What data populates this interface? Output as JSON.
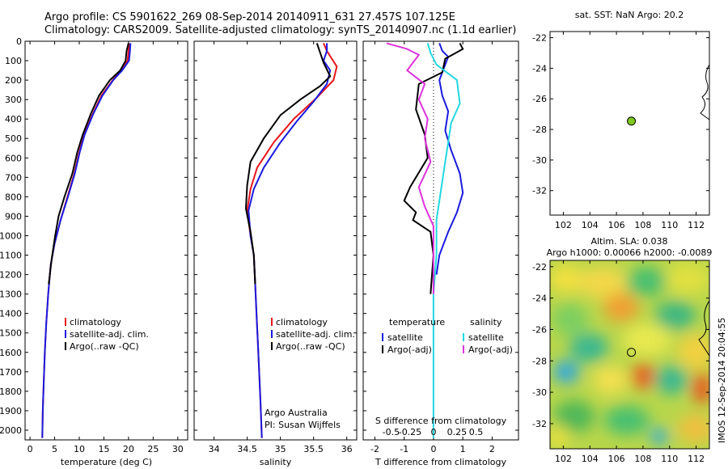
{
  "header": {
    "line1": "Argo profile: CS 5901622_269 08-Sep-2014 20140911_631 27.457S 107.125E",
    "line2": "Climatology: CARS2009. Satellite-adjusted climatology: synTS_20140907.nc (1.1d earlier)"
  },
  "credit": "IMOS 12-Sep-2014 20:04:55",
  "colors": {
    "climatology": "#e8141b",
    "satellite": "#1a1ae0",
    "argo": "#000000",
    "cyan": "#22d8e0",
    "magenta": "#dd33dd"
  },
  "chart_data": [
    {
      "type": "line",
      "id": "temperature",
      "xlabel": "temperature (deg C)",
      "ylabel": "",
      "xlim": [
        -1,
        32
      ],
      "ylim": [
        2050,
        0
      ],
      "xticks": [
        0,
        5,
        10,
        15,
        20,
        25,
        30
      ],
      "yticks": [
        0,
        100,
        200,
        300,
        400,
        500,
        600,
        700,
        800,
        900,
        1000,
        1100,
        1200,
        1300,
        1400,
        1500,
        1600,
        1700,
        1800,
        1900,
        2000
      ],
      "legend": [
        "climatology",
        "satellite-adj. clim.",
        "Argo(..raw -QC)"
      ],
      "series": [
        {
          "name": "climatology",
          "color": "#e8141b",
          "points": [
            [
              20.1,
              10
            ],
            [
              20.0,
              50
            ],
            [
              19.8,
              100
            ],
            [
              18.5,
              150
            ],
            [
              16.8,
              200
            ],
            [
              14.5,
              280
            ],
            [
              12.8,
              370
            ],
            [
              11.0,
              480
            ],
            [
              10.0,
              570
            ],
            [
              9.0,
              680
            ],
            [
              7.6,
              800
            ],
            [
              6.2,
              920
            ],
            [
              5.0,
              1040
            ],
            [
              4.2,
              1150
            ],
            [
              3.7,
              1300
            ],
            [
              3.3,
              1450
            ],
            [
              3.0,
              1600
            ],
            [
              2.8,
              1750
            ],
            [
              2.6,
              1900
            ],
            [
              2.5,
              2040
            ]
          ]
        },
        {
          "name": "satellite-adj. clim.",
          "color": "#1a1ae0",
          "points": [
            [
              20.4,
              10
            ],
            [
              20.3,
              50
            ],
            [
              20.1,
              100
            ],
            [
              18.7,
              150
            ],
            [
              16.9,
              200
            ],
            [
              14.7,
              280
            ],
            [
              12.9,
              370
            ],
            [
              11.1,
              480
            ],
            [
              10.1,
              570
            ],
            [
              9.1,
              680
            ],
            [
              7.7,
              800
            ],
            [
              6.2,
              920
            ],
            [
              5.0,
              1040
            ],
            [
              4.2,
              1150
            ],
            [
              3.7,
              1300
            ],
            [
              3.3,
              1450
            ],
            [
              3.0,
              1600
            ],
            [
              2.8,
              1750
            ],
            [
              2.6,
              1900
            ],
            [
              2.5,
              2040
            ]
          ]
        },
        {
          "name": "Argo(..raw -QC)",
          "color": "#000000",
          "points": [
            [
              20.0,
              10
            ],
            [
              19.6,
              50
            ],
            [
              19.4,
              100
            ],
            [
              18.3,
              150
            ],
            [
              16.2,
              200
            ],
            [
              14.0,
              280
            ],
            [
              12.4,
              370
            ],
            [
              10.7,
              480
            ],
            [
              9.6,
              570
            ],
            [
              8.6,
              680
            ],
            [
              7.0,
              800
            ],
            [
              5.8,
              900
            ],
            [
              5.1,
              1000
            ],
            [
              4.4,
              1120
            ],
            [
              3.8,
              1250
            ]
          ]
        }
      ]
    },
    {
      "type": "line",
      "id": "salinity",
      "xlabel": "salinity",
      "ylabel": "",
      "xlim": [
        33.7,
        36.15
      ],
      "ylim": [
        2050,
        0
      ],
      "xticks": [
        34,
        34.5,
        35,
        35.5,
        36
      ],
      "legend": [
        "climatology",
        "satellite-adj. clim.",
        "Argo(..raw -QC)"
      ],
      "annotation": [
        "Argo Australia",
        "PI: Susan Wijffels"
      ],
      "series": [
        {
          "name": "climatology",
          "color": "#e8141b",
          "points": [
            [
              35.65,
              10
            ],
            [
              35.7,
              50
            ],
            [
              35.85,
              130
            ],
            [
              35.8,
              200
            ],
            [
              35.55,
              290
            ],
            [
              35.2,
              400
            ],
            [
              34.9,
              520
            ],
            [
              34.65,
              650
            ],
            [
              34.55,
              760
            ],
            [
              34.5,
              870
            ],
            [
              34.55,
              1000
            ],
            [
              34.6,
              1100
            ],
            [
              34.62,
              1250
            ],
            [
              34.64,
              1400
            ],
            [
              34.66,
              1550
            ],
            [
              34.68,
              1700
            ],
            [
              34.7,
              1850
            ],
            [
              34.72,
              2040
            ]
          ]
        },
        {
          "name": "satellite-adj. clim.",
          "color": "#1a1ae0",
          "points": [
            [
              35.7,
              10
            ],
            [
              35.7,
              50
            ],
            [
              35.65,
              100
            ],
            [
              35.75,
              150
            ],
            [
              35.7,
              220
            ],
            [
              35.5,
              310
            ],
            [
              35.25,
              410
            ],
            [
              35.0,
              520
            ],
            [
              34.75,
              650
            ],
            [
              34.6,
              760
            ],
            [
              34.52,
              870
            ],
            [
              34.55,
              1000
            ],
            [
              34.6,
              1100
            ],
            [
              34.62,
              1250
            ],
            [
              34.64,
              1400
            ],
            [
              34.66,
              1550
            ],
            [
              34.68,
              1700
            ],
            [
              34.7,
              1850
            ],
            [
              34.72,
              2040
            ]
          ]
        },
        {
          "name": "Argo(..raw -QC)",
          "color": "#000000",
          "points": [
            [
              35.55,
              10
            ],
            [
              35.6,
              60
            ],
            [
              35.65,
              110
            ],
            [
              35.75,
              180
            ],
            [
              35.6,
              230
            ],
            [
              35.3,
              300
            ],
            [
              35.0,
              380
            ],
            [
              34.75,
              500
            ],
            [
              34.55,
              620
            ],
            [
              34.5,
              740
            ],
            [
              34.48,
              860
            ],
            [
              34.55,
              980
            ],
            [
              34.6,
              1100
            ],
            [
              34.62,
              1250
            ]
          ]
        }
      ]
    },
    {
      "type": "line",
      "id": "difference",
      "xlabel": "T difference from climatology",
      "ylabel": "",
      "xlim": [
        -2.4,
        2.9
      ],
      "ylim": [
        2050,
        0
      ],
      "xticks": [
        -2,
        -1,
        0,
        1,
        2
      ],
      "top_axis_label": "S difference from climatology",
      "top_ticks": [
        "-0.5",
        "-0.25",
        "0",
        "0.25",
        "0.5"
      ],
      "legend_groups": [
        {
          "title": "temperature",
          "items": [
            "satellite",
            "Argo(-adj)"
          ]
        },
        {
          "title": "salinity",
          "items": [
            "satellite",
            "Argo(-adj)"
          ]
        }
      ],
      "series": [
        {
          "name": "temperature satellite",
          "color": "#1a1ae0",
          "points": [
            [
              0.2,
              10
            ],
            [
              0.3,
              50
            ],
            [
              0.5,
              80
            ],
            [
              0.4,
              120
            ],
            [
              0.2,
              200
            ],
            [
              0.3,
              280
            ],
            [
              0.5,
              360
            ],
            [
              0.4,
              460
            ],
            [
              0.6,
              560
            ],
            [
              0.9,
              680
            ],
            [
              1.0,
              780
            ],
            [
              0.8,
              880
            ],
            [
              0.5,
              980
            ],
            [
              0.2,
              1100
            ],
            [
              0.1,
              1200
            ]
          ]
        },
        {
          "name": "temperature Argo(-adj)",
          "color": "#000000",
          "points": [
            [
              0.9,
              10
            ],
            [
              1.0,
              40
            ],
            [
              0.4,
              90
            ],
            [
              0.3,
              160
            ],
            [
              -0.5,
              220
            ],
            [
              -0.6,
              350
            ],
            [
              -0.3,
              480
            ],
            [
              -0.2,
              600
            ],
            [
              -0.8,
              750
            ],
            [
              -1.0,
              820
            ],
            [
              -0.6,
              880
            ],
            [
              -0.7,
              920
            ],
            [
              -0.1,
              980
            ],
            [
              0.0,
              1100
            ],
            [
              -0.1,
              1300
            ]
          ]
        },
        {
          "name": "salinity satellite",
          "color": "#22d8e0",
          "points": [
            [
              -0.2,
              10
            ],
            [
              -0.1,
              60
            ],
            [
              0.1,
              120
            ],
            [
              0.8,
              200
            ],
            [
              0.9,
              320
            ],
            [
              0.6,
              420
            ],
            [
              0.5,
              520
            ],
            [
              0.4,
              620
            ],
            [
              0.3,
              720
            ],
            [
              0.2,
              820
            ],
            [
              0.1,
              920
            ],
            [
              0.1,
              1100
            ],
            [
              0.0,
              1300
            ],
            [
              0.0,
              1600
            ],
            [
              0.0,
              2040
            ]
          ]
        },
        {
          "name": "salinity Argo(-adj)",
          "color": "#dd33dd",
          "points": [
            [
              -1.6,
              10
            ],
            [
              -0.9,
              40
            ],
            [
              -0.5,
              70
            ],
            [
              -0.9,
              150
            ],
            [
              -0.3,
              220
            ],
            [
              -0.5,
              300
            ],
            [
              -0.2,
              400
            ],
            [
              -0.3,
              500
            ],
            [
              -0.1,
              620
            ],
            [
              -0.5,
              750
            ],
            [
              -0.3,
              850
            ],
            [
              0.0,
              950
            ],
            [
              0.0,
              1100
            ],
            [
              0.0,
              1300
            ]
          ]
        }
      ]
    },
    {
      "type": "scatter",
      "id": "map-sst",
      "title": "sat. SST: NaN Argo: 20.2",
      "xlim": [
        101,
        113
      ],
      "ylim": [
        -33.6,
        -21.6
      ],
      "xticks": [
        102,
        104,
        106,
        108,
        110,
        112
      ],
      "yticks": [
        -22,
        -24,
        -26,
        -28,
        -30,
        -32
      ],
      "points": [
        {
          "x": 107.125,
          "y": -27.457,
          "color": "#7ec820"
        }
      ]
    },
    {
      "type": "heatmap",
      "id": "map-sla",
      "title_lines": [
        "Altim. SLA: 0.038",
        "Argo h1000: 0.00066 h2000: -0.0089"
      ],
      "xlim": [
        101,
        113
      ],
      "ylim": [
        -33.6,
        -21.6
      ],
      "xticks": [
        102,
        104,
        106,
        108,
        110,
        112
      ],
      "yticks": [
        -22,
        -24,
        -26,
        -28,
        -30,
        -32
      ],
      "points": [
        {
          "x": 107.125,
          "y": -27.457
        }
      ]
    }
  ]
}
